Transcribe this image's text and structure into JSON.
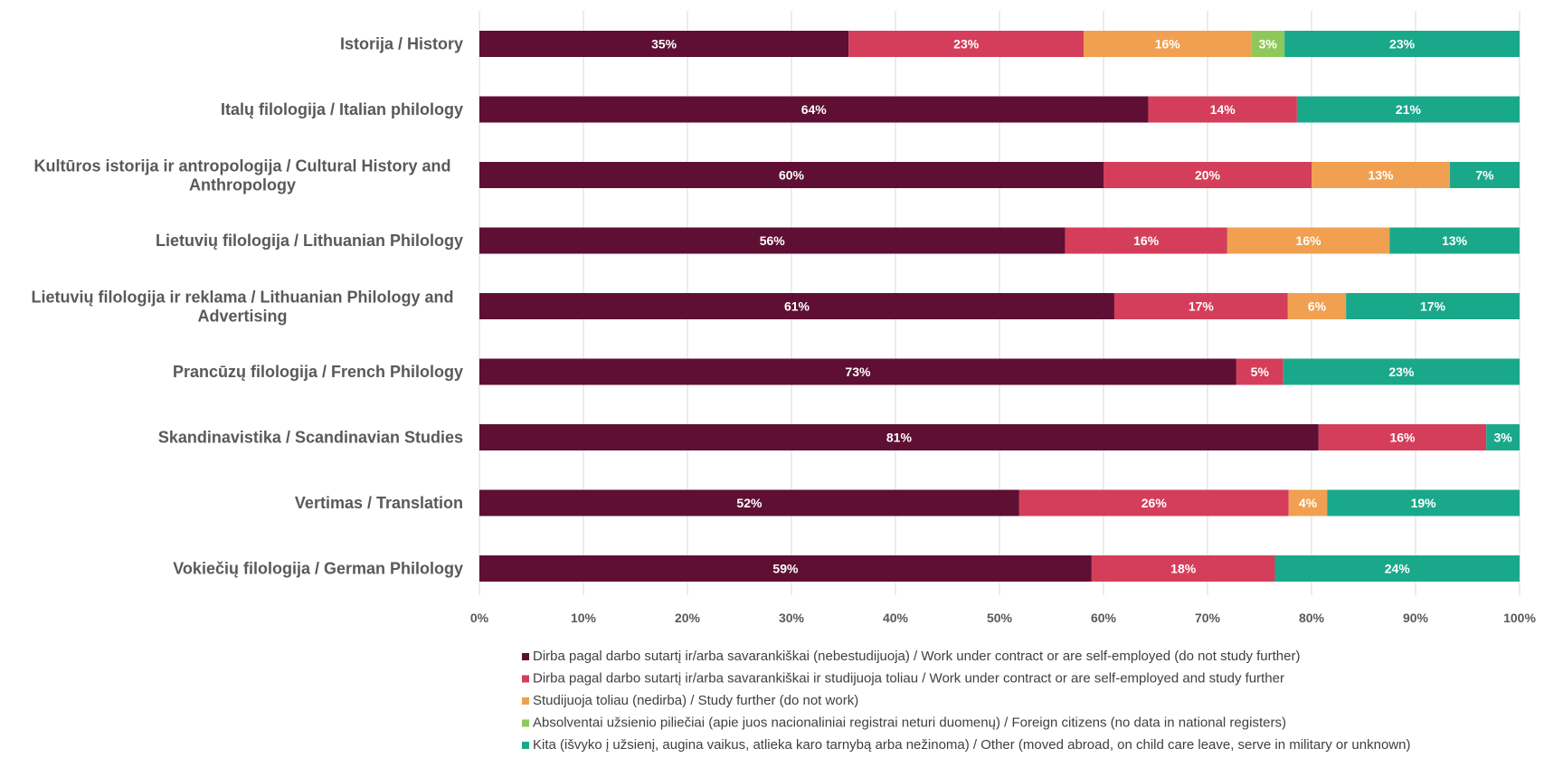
{
  "chart_data": {
    "type": "bar",
    "orientation": "horizontal",
    "stacked": "percent",
    "categories": [
      "Istorija / History",
      "Italų filologija / Italian philology",
      "Kultūros istorija ir antropologija / Cultural History and Anthropology",
      "Lietuvių filologija / Lithuanian Philology",
      "Lietuvių filologija ir reklama / Lithuanian Philology and Advertising",
      "Prancūzų filologija / French Philology",
      "Skandinavistika / Scandinavian Studies",
      "Vertimas / Translation",
      "Vokiečių filologija / German Philology"
    ],
    "category_label_lines": [
      [
        "Istorija / History"
      ],
      [
        "Italų filologija / Italian philology"
      ],
      [
        "Kultūros istorija ir antropologija / Cultural History and",
        "Anthropology"
      ],
      [
        "Lietuvių filologija / Lithuanian Philology"
      ],
      [
        "Lietuvių filologija ir reklama / Lithuanian Philology and",
        "Advertising"
      ],
      [
        "Prancūzų filologija / French Philology"
      ],
      [
        "Skandinavistika / Scandinavian Studies"
      ],
      [
        "Vertimas / Translation"
      ],
      [
        "Vokiečių filologija / German Philology"
      ]
    ],
    "series": [
      {
        "name": "Dirba pagal darbo sutartį ir/arba savarankiškai (nebestudijuoja) / Work under contract or are self-employed (do not study further)",
        "color": "#5e0f33",
        "values": [
          35.5,
          64.3,
          60.0,
          56.3,
          61.1,
          72.7,
          80.6,
          51.9,
          58.8
        ],
        "labels": [
          "35%",
          "64%",
          "60%",
          "56%",
          "61%",
          "73%",
          "81%",
          "52%",
          "59%"
        ]
      },
      {
        "name": "Dirba pagal darbo sutartį ir/arba savarankiškai  ir studijuoja toliau / Work under contract or are self-employed and study further",
        "color": "#d43e5a",
        "values": [
          22.6,
          14.3,
          20.0,
          15.6,
          16.7,
          4.5,
          16.1,
          25.9,
          17.6
        ],
        "labels": [
          "23%",
          "14%",
          "20%",
          "16%",
          "17%",
          "5%",
          "16%",
          "26%",
          "18%"
        ]
      },
      {
        "name": "Studijuoja toliau (nedirba) / Study further (do not work)",
        "color": "#f0a050",
        "values": [
          16.1,
          0,
          13.3,
          15.6,
          5.6,
          0,
          0,
          3.7,
          0
        ],
        "labels": [
          "16%",
          "",
          "13%",
          "16%",
          "6%",
          "",
          "",
          "4%",
          ""
        ]
      },
      {
        "name": "Absolventai užsienio piliečiai (apie juos nacionaliniai registrai neturi duomenų) / Foreign citizens (no data in national registers)",
        "color": "#8fc85a",
        "values": [
          3.2,
          0,
          0,
          0,
          0,
          0,
          0,
          0,
          0
        ],
        "labels": [
          "3%",
          "",
          "",
          "",
          "",
          "",
          "",
          "",
          ""
        ]
      },
      {
        "name": "Kita (išvyko į užsienį, augina vaikus, atlieka karo tarnybą arba nežinoma) / Other (moved abroad, on child care leave, serve in military or unknown)",
        "color": "#1aa88a",
        "values": [
          22.6,
          21.4,
          6.7,
          12.5,
          16.7,
          22.7,
          3.2,
          18.5,
          23.5
        ],
        "labels": [
          "23%",
          "21%",
          "7%",
          "13%",
          "17%",
          "23%",
          "3%",
          "19%",
          "24%"
        ]
      }
    ],
    "xlim": [
      0,
      100
    ],
    "x_ticks": [
      "0%",
      "10%",
      "20%",
      "30%",
      "40%",
      "50%",
      "60%",
      "70%",
      "80%",
      "90%",
      "100%"
    ],
    "grid": true,
    "legend_position": "bottom",
    "title": "",
    "xlabel": "",
    "ylabel": ""
  }
}
